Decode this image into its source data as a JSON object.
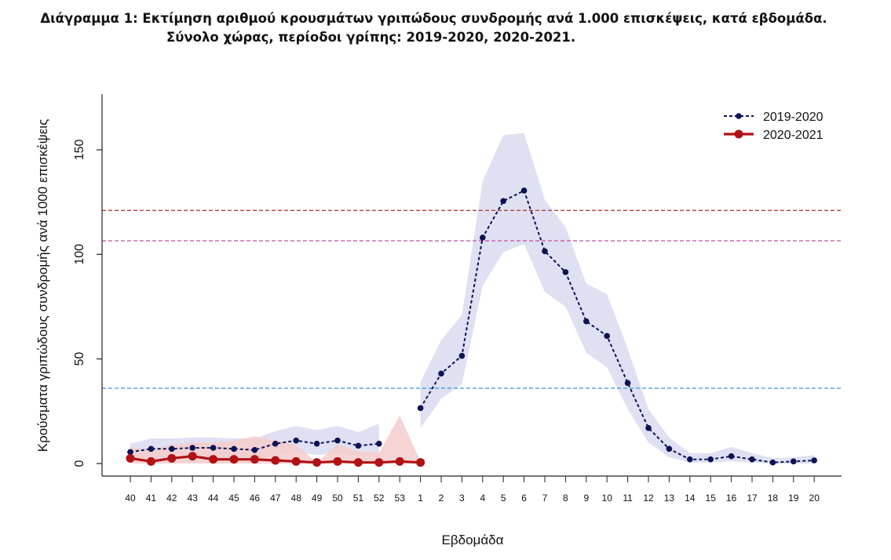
{
  "title": {
    "line1": "Διάγραμμα 1: Εκτίμηση αριθμού κρουσμάτων γριπώδους συνδρομής ανά 1.000 επισκέψεις, κατά εβδομάδα.",
    "line2": "Σύνολο χώρας, περίοδοι γρίπης:  2019-2020, 2020-2021."
  },
  "chart_data": {
    "type": "line",
    "xlabel": "Εβδομάδα",
    "ylabel": "Κρούσματα γριπώδους συνδρομής ανά 1000 επισκέψεις",
    "ylim": [
      0,
      175
    ],
    "yticks": [
      0,
      50,
      100,
      150
    ],
    "categories": [
      "40",
      "41",
      "42",
      "43",
      "44",
      "45",
      "46",
      "47",
      "48",
      "49",
      "50",
      "51",
      "52",
      "53",
      "1",
      "2",
      "3",
      "4",
      "5",
      "6",
      "7",
      "8",
      "9",
      "10",
      "11",
      "12",
      "13",
      "14",
      "15",
      "16",
      "17",
      "18",
      "19",
      "20"
    ],
    "legend_position": "top-right",
    "grid": false,
    "thresholds": [
      {
        "value": 121,
        "color": "#b5403b"
      },
      {
        "value": 106.5,
        "color": "#c0509a"
      },
      {
        "value": 36,
        "color": "#3d8fe0"
      }
    ],
    "series": [
      {
        "name": "2019-2020",
        "color": "#0d1254",
        "style": "dashed-points",
        "band_color": "#dfe0f2",
        "values": [
          5.5,
          7,
          7,
          7.5,
          7.5,
          7,
          6.5,
          9.5,
          11,
          9.5,
          11,
          8.5,
          9.5,
          null,
          26.5,
          43,
          51.5,
          108,
          125.5,
          130.5,
          101.5,
          91.5,
          68,
          61,
          38.5,
          17,
          7,
          2,
          2,
          3.5,
          2,
          0.5,
          1,
          1.5
        ],
        "band_low": [
          1,
          1.5,
          1.5,
          2,
          2,
          2,
          2,
          4,
          5.5,
          4,
          5,
          3.5,
          4,
          null,
          17,
          31,
          38,
          85,
          101,
          105,
          82,
          75,
          53,
          46,
          26,
          10,
          3,
          0.5,
          0.5,
          1,
          0.5,
          0,
          0,
          0
        ],
        "band_high": [
          9.5,
          12,
          12,
          12.5,
          12.5,
          12,
          12,
          15.5,
          18,
          16,
          18,
          15,
          19,
          null,
          39,
          59,
          71,
          135,
          157,
          158,
          126,
          113,
          86,
          81,
          55,
          26,
          12.5,
          5,
          5,
          8,
          5,
          2.5,
          3,
          4
        ]
      },
      {
        "name": "2020-2021",
        "color": "#b01216",
        "style": "solid-points",
        "band_color": "#f6cccc",
        "values": [
          2.5,
          1,
          2.5,
          3.5,
          2,
          2,
          2,
          1.5,
          1,
          0.5,
          1,
          0.5,
          0.5,
          1,
          0.5,
          null,
          null,
          null,
          null,
          null,
          null,
          null,
          null,
          null,
          null,
          null,
          null,
          null,
          null,
          null,
          null,
          null,
          null,
          null
        ],
        "band_low": [
          0,
          0,
          0,
          0,
          0,
          0,
          0,
          0,
          0,
          0,
          0,
          0,
          0,
          0,
          0,
          null,
          null,
          null,
          null,
          null,
          null,
          null,
          null,
          null,
          null,
          null,
          null,
          null,
          null,
          null,
          null,
          null,
          null,
          null
        ],
        "band_high": [
          8,
          6,
          9,
          10,
          10,
          11,
          13,
          11,
          9,
          0.5,
          9,
          6,
          5,
          23,
          1,
          null,
          null,
          null,
          null,
          null,
          null,
          null,
          null,
          null,
          null,
          null,
          null,
          null,
          null,
          null,
          null,
          null,
          null,
          null
        ]
      }
    ]
  }
}
